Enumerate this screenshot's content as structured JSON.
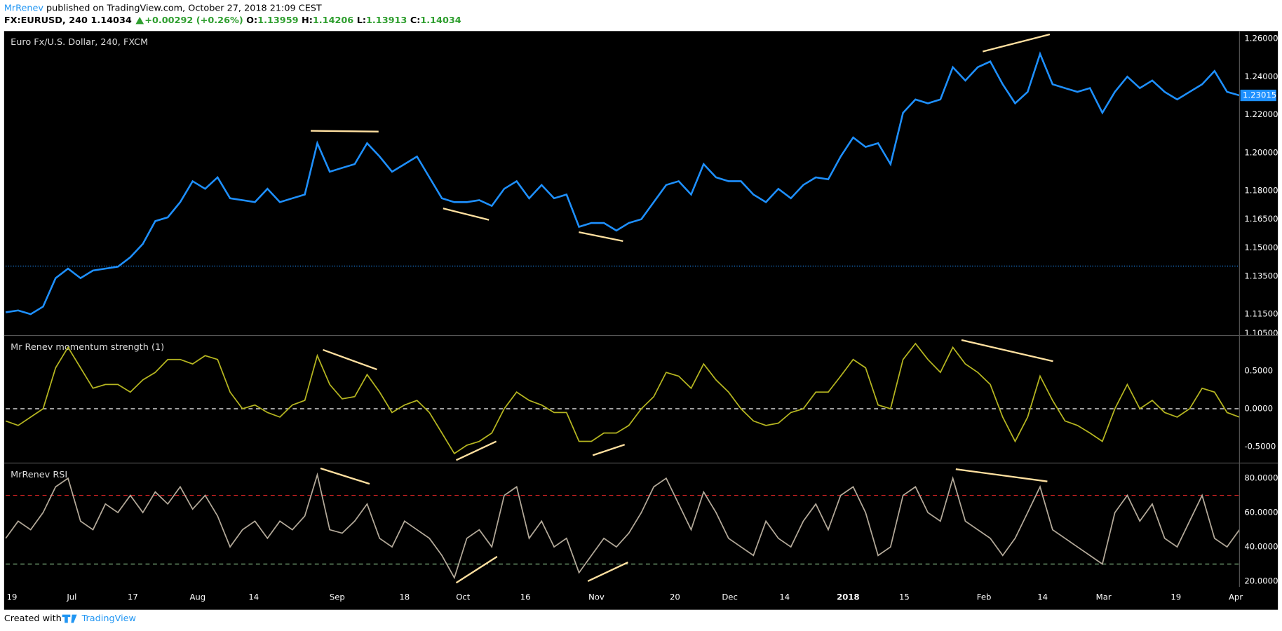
{
  "header": {
    "author": "MrRenev",
    "published": "published on TradingView.com, October 27, 2018 21:09 CEST",
    "symbol": "FX:EURUSD, 240",
    "last": "1.14034",
    "change": "+0.00292 (+0.26%)",
    "ohlc": [
      {
        "label": "O:",
        "value": "1.13959"
      },
      {
        "label": "H:",
        "value": "1.14206"
      },
      {
        "label": "L:",
        "value": "1.13913"
      },
      {
        "label": "C:",
        "value": "1.14034"
      }
    ]
  },
  "footer": {
    "created": "Created with",
    "brand": "TradingView"
  },
  "chart_data": [
    {
      "type": "line",
      "title": "Euro Fx/U.S. Dollar, 240, FXCM",
      "color": "#1e90ff",
      "xlim": [
        0,
        99
      ],
      "ylim": [
        1.104,
        1.264
      ],
      "yticks": [
        {
          "value": 1.105,
          "label": "1.10500"
        },
        {
          "value": 1.115,
          "label": "1.11500"
        },
        {
          "value": 1.135,
          "label": "1.13500"
        },
        {
          "value": 1.15,
          "label": "1.15000"
        },
        {
          "value": 1.165,
          "label": "1.16500"
        },
        {
          "value": 1.18,
          "label": "1.18000"
        },
        {
          "value": 1.2,
          "label": "1.20000"
        },
        {
          "value": 1.22,
          "label": "1.22000"
        },
        {
          "value": 1.24,
          "label": "1.24000"
        },
        {
          "value": 1.26,
          "label": "1.26000"
        }
      ],
      "last_value": 1.23015,
      "price_line": 1.14034,
      "values": [
        1.116,
        1.117,
        1.115,
        1.119,
        1.134,
        1.139,
        1.134,
        1.138,
        1.139,
        1.14,
        1.145,
        1.152,
        1.164,
        1.166,
        1.174,
        1.185,
        1.181,
        1.187,
        1.176,
        1.175,
        1.174,
        1.181,
        1.174,
        1.176,
        1.178,
        1.205,
        1.19,
        1.192,
        1.194,
        1.205,
        1.198,
        1.19,
        1.194,
        1.198,
        1.187,
        1.176,
        1.174,
        1.174,
        1.175,
        1.172,
        1.181,
        1.185,
        1.176,
        1.183,
        1.176,
        1.178,
        1.161,
        1.163,
        1.163,
        1.159,
        1.163,
        1.165,
        1.174,
        1.183,
        1.185,
        1.178,
        1.194,
        1.187,
        1.185,
        1.185,
        1.178,
        1.174,
        1.181,
        1.176,
        1.183,
        1.187,
        1.186,
        1.198,
        1.208,
        1.203,
        1.205,
        1.194,
        1.221,
        1.228,
        1.226,
        1.228,
        1.245,
        1.238,
        1.245,
        1.248,
        1.236,
        1.226,
        1.232,
        1.252,
        1.236,
        1.234,
        1.232,
        1.234,
        1.221,
        1.232,
        1.24,
        1.234,
        1.238,
        1.232,
        1.228,
        1.232,
        1.236,
        1.243,
        1.232,
        1.23015
      ]
    },
    {
      "type": "line",
      "title": "Mr Renev momentum strength (1)",
      "color": "#b5b520",
      "xlim": [
        0,
        99
      ],
      "ylim": [
        -0.71,
        0.96
      ],
      "yticks": [
        {
          "value": -0.5,
          "label": "-0.5000"
        },
        {
          "value": 0,
          "label": "0.0000"
        },
        {
          "value": 0.5,
          "label": "0.5000"
        }
      ],
      "hlines": [
        {
          "value": 0,
          "color": "#ffffff"
        }
      ],
      "values": [
        -0.16,
        -0.22,
        -0.11,
        0,
        0.54,
        0.81,
        0.54,
        0.27,
        0.32,
        0.32,
        0.22,
        0.38,
        0.48,
        0.65,
        0.65,
        0.59,
        0.7,
        0.65,
        0.22,
        0,
        0.05,
        -0.05,
        -0.11,
        0.05,
        0.11,
        0.7,
        0.32,
        0.13,
        0.16,
        0.45,
        0.22,
        -0.05,
        0.05,
        0.11,
        -0.05,
        -0.32,
        -0.59,
        -0.48,
        -0.43,
        -0.32,
        0,
        0.22,
        0.11,
        0.05,
        -0.05,
        -0.05,
        -0.43,
        -0.43,
        -0.32,
        -0.32,
        -0.22,
        0,
        0.16,
        0.48,
        0.43,
        0.27,
        0.59,
        0.38,
        0.22,
        0,
        -0.16,
        -0.22,
        -0.19,
        -0.05,
        0,
        0.22,
        0.22,
        0.43,
        0.65,
        0.54,
        0.05,
        0,
        0.65,
        0.86,
        0.65,
        0.48,
        0.81,
        0.59,
        0.48,
        0.32,
        -0.11,
        -0.43,
        -0.11,
        0.43,
        0.11,
        -0.16,
        -0.22,
        -0.32,
        -0.43,
        0,
        0.32,
        0,
        0.11,
        -0.05,
        -0.11,
        0,
        0.27,
        0.22,
        -0.05,
        -0.11
      ]
    },
    {
      "type": "line",
      "title": "MrRenev RSI",
      "color": "#b3a999",
      "xlim": [
        0,
        99
      ],
      "ylim": [
        16.7,
        88.6
      ],
      "yticks": [
        {
          "value": 20,
          "label": "20.0000"
        },
        {
          "value": 40,
          "label": "40.0000"
        },
        {
          "value": 60,
          "label": "60.0000"
        },
        {
          "value": 80,
          "label": "80.0000"
        }
      ],
      "hlines": [
        {
          "value": 70,
          "color": "#cc2222"
        },
        {
          "value": 30,
          "color": "#88bb88"
        }
      ],
      "xticks": [
        {
          "value": 0.5,
          "label": "19"
        },
        {
          "value": 5.3,
          "label": "Jul"
        },
        {
          "value": 10.2,
          "label": "17"
        },
        {
          "value": 15.4,
          "label": "Aug"
        },
        {
          "value": 19.9,
          "label": "14"
        },
        {
          "value": 26.6,
          "label": "Sep"
        },
        {
          "value": 32,
          "label": "18"
        },
        {
          "value": 36.7,
          "label": "Oct"
        },
        {
          "value": 41.7,
          "label": "16"
        },
        {
          "value": 47.4,
          "label": "Nov"
        },
        {
          "value": 53.7,
          "label": "20"
        },
        {
          "value": 58.1,
          "label": "Dec"
        },
        {
          "value": 62.5,
          "label": "14"
        },
        {
          "value": 67.6,
          "label": "2018"
        },
        {
          "value": 72.1,
          "label": "15"
        },
        {
          "value": 78.5,
          "label": "Feb"
        },
        {
          "value": 83.2,
          "label": "14"
        },
        {
          "value": 88.1,
          "label": "Mar"
        },
        {
          "value": 93.9,
          "label": "19"
        },
        {
          "value": 98.7,
          "label": "Apr"
        }
      ],
      "values": [
        45,
        55,
        50,
        60,
        75,
        80,
        55,
        50,
        65,
        60,
        70,
        60,
        72,
        65,
        75,
        62,
        70,
        58,
        40,
        50,
        55,
        45,
        55,
        50,
        58,
        82,
        50,
        48,
        55,
        65,
        45,
        40,
        55,
        50,
        45,
        35,
        22,
        45,
        50,
        40,
        70,
        75,
        45,
        55,
        40,
        45,
        25,
        35,
        45,
        40,
        48,
        60,
        75,
        80,
        65,
        50,
        72,
        60,
        45,
        40,
        35,
        55,
        45,
        40,
        55,
        65,
        50,
        70,
        75,
        60,
        35,
        40,
        70,
        75,
        60,
        55,
        80,
        55,
        50,
        45,
        35,
        45,
        60,
        75,
        50,
        45,
        40,
        35,
        30,
        60,
        70,
        55,
        65,
        45,
        40,
        55,
        70,
        45,
        40,
        50
      ]
    }
  ]
}
